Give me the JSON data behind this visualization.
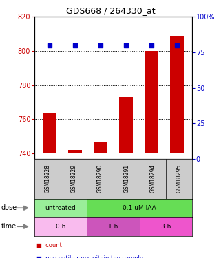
{
  "title": "GDS668 / 264330_at",
  "samples": [
    "GSM18228",
    "GSM18229",
    "GSM18290",
    "GSM18291",
    "GSM18294",
    "GSM18295"
  ],
  "count_values": [
    764,
    742,
    747,
    773,
    800,
    809
  ],
  "dot_percentile": [
    80,
    80,
    80,
    80,
    80,
    80
  ],
  "ylim_left": [
    737,
    820
  ],
  "ylim_right": [
    0,
    100
  ],
  "yticks_left": [
    740,
    760,
    780,
    800,
    820
  ],
  "yticks_right": [
    0,
    25,
    50,
    75,
    100
  ],
  "bar_color": "#cc0000",
  "dot_color": "#0000cc",
  "bar_bottom": 740,
  "dose_data": [
    {
      "text": "untreated",
      "start": 0,
      "end": 2,
      "color": "#99ee99"
    },
    {
      "text": "0.1 uM IAA",
      "start": 2,
      "end": 6,
      "color": "#66dd55"
    }
  ],
  "time_data": [
    {
      "text": "0 h",
      "start": 0,
      "end": 2,
      "color": "#f9bbee"
    },
    {
      "text": "1 h",
      "start": 2,
      "end": 4,
      "color": "#cc55bb"
    },
    {
      "text": "3 h",
      "start": 4,
      "end": 6,
      "color": "#ee55cc"
    }
  ],
  "sample_box_color": "#cccccc",
  "legend_red_label": "count",
  "legend_blue_label": "percentile rank within the sample",
  "grid_dotted_at": [
    760,
    780,
    800
  ],
  "dot_size": 25
}
